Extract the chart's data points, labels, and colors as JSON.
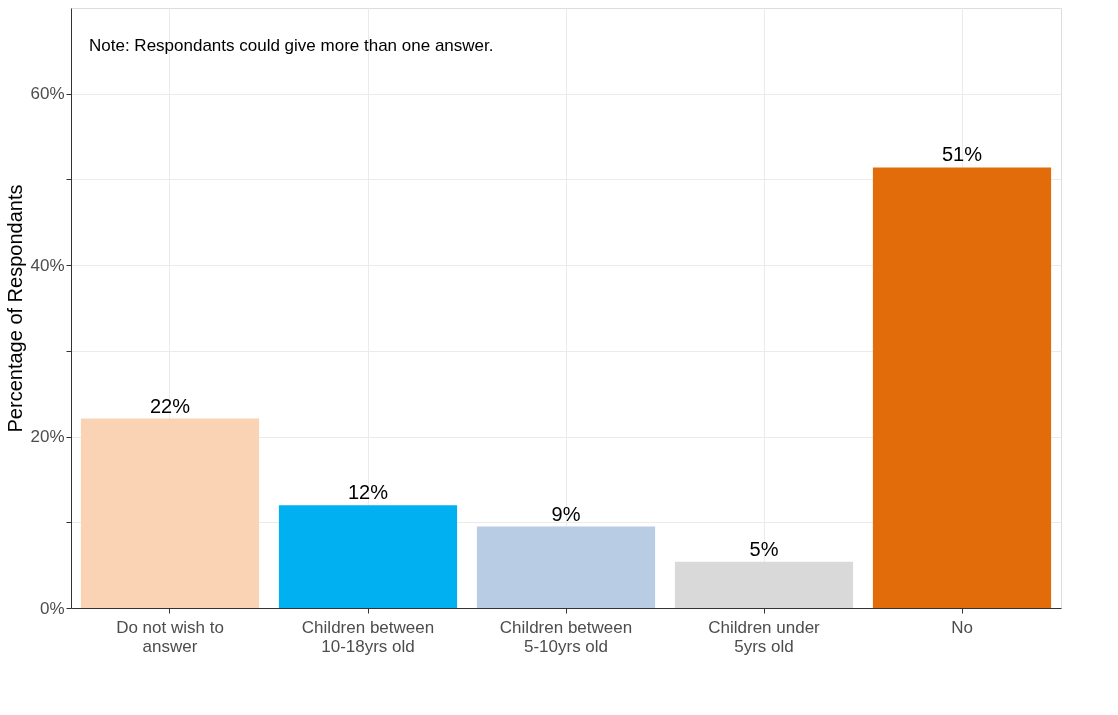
{
  "chart_data": {
    "type": "bar",
    "ylabel": "Percentage of Respondants",
    "categories": [
      "Do not wish to answer",
      "Children between 10-18yrs old",
      "Children between 5-10yrs old",
      "Children under 5yrs old",
      "No"
    ],
    "values": [
      22.1,
      12.0,
      9.5,
      5.4,
      51.4
    ],
    "colors": [
      "#f9d3b4",
      "#00b0f0",
      "#b8cce4",
      "#d9d9d9",
      "#e36c0a"
    ],
    "value_labels": [
      "22%",
      "12%",
      "9%",
      "5%",
      "51%"
    ],
    "ylim": [
      0,
      70
    ],
    "yticks": [
      {
        "value": 0,
        "label": "0%"
      },
      {
        "value": 10,
        "label": null
      },
      {
        "value": 20,
        "label": "20%"
      },
      {
        "value": 30,
        "label": null
      },
      {
        "value": 40,
        "label": "40%"
      },
      {
        "value": 50,
        "label": null
      },
      {
        "value": 60,
        "label": "60%"
      }
    ],
    "grid": true,
    "annotations": [
      "Note: Respondants could give more than one answer."
    ]
  }
}
